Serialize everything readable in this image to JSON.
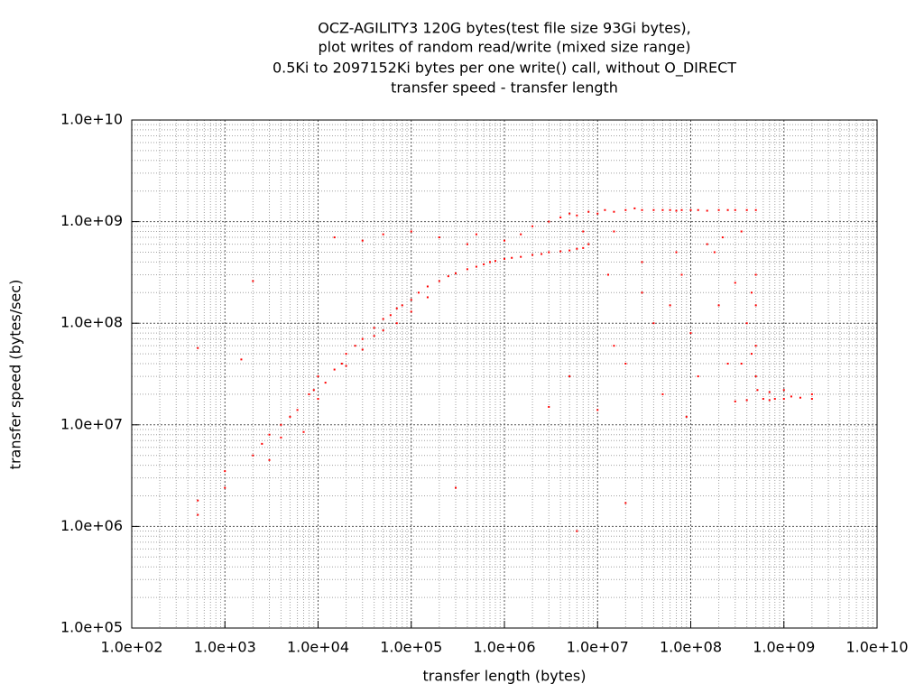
{
  "chart_data": {
    "type": "scatter",
    "title": [
      "OCZ-AGILITY3 120G bytes(test file size 93Gi bytes),",
      "plot writes of random read/write (mixed size range)",
      "0.5Ki to 2097152Ki bytes per one write() call, without O_DIRECT",
      "transfer speed - transfer length"
    ],
    "xlabel": "transfer length (bytes)",
    "ylabel": "transfer speed (bytes/sec)",
    "xscale": "log",
    "yscale": "log",
    "grid": true,
    "minor_grid": true,
    "color": "#ff0000",
    "xlim": [
      100,
      10000000000
    ],
    "ylim": [
      100000,
      10000000000
    ],
    "xticks": [
      {
        "value": 100,
        "label": "1.0e+02"
      },
      {
        "value": 1000,
        "label": "1.0e+03"
      },
      {
        "value": 10000,
        "label": "1.0e+04"
      },
      {
        "value": 100000,
        "label": "1.0e+05"
      },
      {
        "value": 1000000,
        "label": "1.0e+06"
      },
      {
        "value": 10000000,
        "label": "1.0e+07"
      },
      {
        "value": 100000000,
        "label": "1.0e+08"
      },
      {
        "value": 1000000000,
        "label": "1.0e+09"
      },
      {
        "value": 10000000000,
        "label": "1.0e+10"
      }
    ],
    "yticks": [
      {
        "value": 100000,
        "label": "1.0e+05"
      },
      {
        "value": 1000000,
        "label": "1.0e+06"
      },
      {
        "value": 10000000,
        "label": "1.0e+07"
      },
      {
        "value": 100000000,
        "label": "1.0e+08"
      },
      {
        "value": 1000000000,
        "label": "1.0e+09"
      },
      {
        "value": 10000000000,
        "label": "1.0e+10"
      }
    ],
    "x": [
      512,
      512,
      512,
      1000,
      1000,
      1500,
      2000,
      2000,
      2500,
      3000,
      3000,
      4000,
      4000,
      5000,
      6000,
      7000,
      8000,
      9000,
      10000,
      10000,
      12000,
      15000,
      15000,
      18000,
      20000,
      20000,
      25000,
      30000,
      30000,
      30000,
      40000,
      40000,
      50000,
      50000,
      50000,
      60000,
      70000,
      70000,
      80000,
      100000,
      100000,
      100000,
      120000,
      150000,
      150000,
      200000,
      200000,
      250000,
      300000,
      300000,
      400000,
      400000,
      500000,
      500000,
      600000,
      700000,
      800000,
      1000000,
      1000000,
      1200000,
      1500000,
      1500000,
      2000000,
      2000000,
      2500000,
      3000000,
      3000000,
      4000000,
      4000000,
      5000000,
      5000000,
      6000000,
      6000000,
      7000000,
      7000000,
      8000000,
      8000000,
      10000000,
      10000000,
      12000000,
      15000000,
      15000000,
      20000000,
      20000000,
      25000000,
      30000000,
      30000000,
      40000000,
      40000000,
      50000000,
      50000000,
      60000000,
      70000000,
      70000000,
      80000000,
      100000000,
      100000000,
      120000000,
      120000000,
      150000000,
      150000000,
      200000000,
      200000000,
      250000000,
      250000000,
      300000000,
      300000000,
      400000000,
      400000000,
      500000000,
      500000000,
      500000000,
      500000000,
      500000000,
      520000000,
      450000000,
      450000000,
      600000000,
      700000000,
      800000000,
      1000000000,
      1200000000,
      1500000000,
      2000000000,
      2000000000,
      700000000,
      1000000000,
      300000000,
      400000000,
      20000000,
      30000000,
      60000000,
      80000000,
      15000000,
      5000000,
      6000000,
      3000000,
      13000000,
      90000000,
      180000000,
      220000000,
      350000000,
      350000000
    ],
    "values": [
      1800000,
      1300000,
      57000000,
      3500000,
      2400000,
      44000000,
      5000000,
      260000000,
      6500000,
      8000000,
      4500000,
      10000000,
      7500000,
      12000000,
      14000000,
      8500000,
      20000000,
      22000000,
      18000000,
      30000000,
      26000000,
      35000000,
      700000000,
      40000000,
      50000000,
      38000000,
      60000000,
      70000000,
      55000000,
      650000000,
      90000000,
      75000000,
      110000000,
      85000000,
      750000000,
      120000000,
      140000000,
      100000000,
      150000000,
      170000000,
      130000000,
      800000000,
      200000000,
      230000000,
      180000000,
      260000000,
      700000000,
      290000000,
      310000000,
      2400000,
      340000000,
      600000000,
      360000000,
      750000000,
      380000000,
      400000000,
      410000000,
      430000000,
      650000000,
      440000000,
      450000000,
      750000000,
      470000000,
      900000000,
      480000000,
      500000000,
      1000000000,
      510000000,
      1100000000,
      520000000,
      1200000000,
      540000000,
      1150000000,
      550000000,
      800000000,
      600000000,
      1250000000,
      1200000000,
      14000000,
      1300000000,
      1250000000,
      800000000,
      1300000000,
      1700000,
      1350000000,
      1300000000,
      400000000,
      1300000000,
      100000000,
      1300000000,
      20000000,
      1300000000,
      1280000000,
      500000000,
      1300000000,
      1300000000,
      80000000,
      1300000000,
      30000000,
      1280000000,
      600000000,
      1300000000,
      150000000,
      1300000000,
      40000000,
      1300000000,
      250000000,
      1300000000,
      100000000,
      1300000000,
      300000000,
      150000000,
      60000000,
      30000000,
      22000000,
      200000000,
      50000000,
      18000000,
      17500000,
      18000000,
      18000000,
      19000000,
      18500000,
      18000000,
      20000000,
      21000000,
      22000000,
      17000000,
      17500000,
      40000000,
      200000000,
      150000000,
      300000000,
      60000000,
      30000000,
      900000,
      15000000,
      300000000,
      12000000,
      500000000,
      700000000,
      800000000,
      40000000
    ]
  }
}
